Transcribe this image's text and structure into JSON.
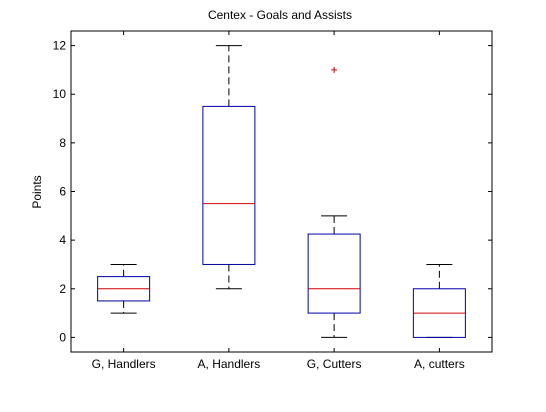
{
  "chart_data": {
    "type": "boxplot",
    "title": "Centex - Goals and Assists",
    "ylabel": "Points",
    "xlabel": "",
    "ylim": [
      -0.6,
      12.6
    ],
    "yticks": [
      0,
      2,
      4,
      6,
      8,
      10,
      12
    ],
    "grid": false,
    "categories": [
      "G, Handlers",
      "A, Handlers",
      "G, Cutters",
      "A, cutters"
    ],
    "boxes": [
      {
        "category": "G, Handlers",
        "whisker_low": 1,
        "q1": 1.5,
        "median": 2,
        "q3": 2.5,
        "whisker_high": 3,
        "outliers": []
      },
      {
        "category": "A, Handlers",
        "whisker_low": 2,
        "q1": 3,
        "median": 5.5,
        "q3": 9.5,
        "whisker_high": 12,
        "outliers": []
      },
      {
        "category": "G, Cutters",
        "whisker_low": 0,
        "q1": 1,
        "median": 2,
        "q3": 4.25,
        "whisker_high": 5,
        "outliers": [
          11
        ]
      },
      {
        "category": "A, cutters",
        "whisker_low": 0,
        "q1": 0,
        "median": 1,
        "q3": 2,
        "whisker_high": 3,
        "outliers": []
      }
    ],
    "colors": {
      "box": "#0000aa",
      "median": "#d40000",
      "whisker": "#000000",
      "outlier": "#d40000"
    }
  }
}
